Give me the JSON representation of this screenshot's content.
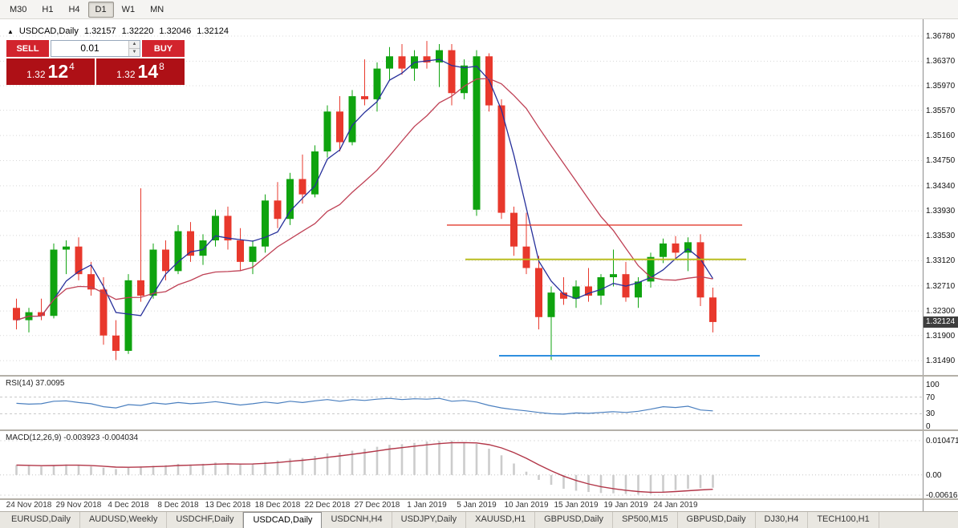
{
  "colors": {
    "up": "#0fa30f",
    "down": "#e8382c",
    "ma_fast": "#27309b",
    "ma_slow": "#bf4155",
    "rsi": "#4a7fbf",
    "macd_bar": "#cccccc",
    "macd_signal": "#b23648"
  },
  "toolbar": {
    "timeframes": [
      {
        "label": "M30",
        "active": false
      },
      {
        "label": "H1",
        "active": false
      },
      {
        "label": "H4",
        "active": false
      },
      {
        "label": "D1",
        "active": true
      },
      {
        "label": "W1",
        "active": false
      },
      {
        "label": "MN",
        "active": false
      }
    ]
  },
  "header": {
    "marker": "▲",
    "symbol": "USDCAD,Daily",
    "open": "1.32157",
    "high": "1.32220",
    "low": "1.32046",
    "close": "1.32124"
  },
  "trade_panel": {
    "sell_label": "SELL",
    "buy_label": "BUY",
    "volume": "0.01",
    "sell_price": {
      "big": "1.32",
      "pips": "12",
      "sup": "4"
    },
    "buy_price": {
      "big": "1.32",
      "pips": "14",
      "sup": "8"
    }
  },
  "price_axis": [
    "1.36780",
    "1.36370",
    "1.35970",
    "1.35570",
    "1.35160",
    "1.34750",
    "1.34340",
    "1.33930",
    "1.33530",
    "1.33120",
    "1.32710",
    "1.32300",
    "1.31900",
    "1.31490"
  ],
  "current_price_badge": "1.32124",
  "rsi_panel": {
    "label": "RSI(14) 37.0095",
    "axis": [
      "100",
      "70",
      "30",
      "0"
    ],
    "levels": [
      100,
      70,
      30,
      0
    ]
  },
  "macd_panel": {
    "label": "MACD(12,26,9) -0.003923 -0.004034",
    "axis_top": "0.010471",
    "axis_zero": "0.00",
    "axis_bottom": "-0.00616"
  },
  "tabs": [
    {
      "label": "EURUSD,Daily",
      "active": false
    },
    {
      "label": "AUDUSD,Weekly",
      "active": false
    },
    {
      "label": "USDCHF,Daily",
      "active": false
    },
    {
      "label": "USDCAD,Daily",
      "active": true
    },
    {
      "label": "USDCNH,H4",
      "active": false
    },
    {
      "label": "USDJPY,Daily",
      "active": false
    },
    {
      "label": "XAUUSD,H1",
      "active": false
    },
    {
      "label": "GBPUSD,Daily",
      "active": false
    },
    {
      "label": "SP500,M15",
      "active": false
    },
    {
      "label": "GBPUSD,Daily",
      "active": false
    },
    {
      "label": "DJ30,H4",
      "active": false
    },
    {
      "label": "TECH100,H1",
      "active": false
    }
  ],
  "chart_data": {
    "type": "candlestick",
    "symbol": "USDCAD",
    "timeframe": "Daily",
    "ohlc_display": {
      "open": 1.32157,
      "high": 1.3222,
      "low": 1.32046,
      "close": 1.32124
    },
    "y_axis_range": [
      1.3149,
      1.3678
    ],
    "x_labels": [
      "24 Nov 2018",
      "29 Nov 2018",
      "4 Dec 2018",
      "8 Dec 2018",
      "13 Dec 2018",
      "18 Dec 2018",
      "22 Dec 2018",
      "27 Dec 2018",
      "1 Jan 2019",
      "5 Jan 2019",
      "10 Jan 2019",
      "15 Jan 2019",
      "19 Jan 2019",
      "24 Jan 2019"
    ],
    "candles": [
      [
        1.3235,
        1.325,
        1.32,
        1.3215
      ],
      [
        1.3215,
        1.3235,
        1.3195,
        1.3228
      ],
      [
        1.3228,
        1.325,
        1.3215,
        1.3222
      ],
      [
        1.3222,
        1.334,
        1.3218,
        1.333
      ],
      [
        1.333,
        1.3345,
        1.329,
        1.3335
      ],
      [
        1.3335,
        1.335,
        1.328,
        1.329
      ],
      [
        1.329,
        1.331,
        1.3255,
        1.3265
      ],
      [
        1.3265,
        1.3285,
        1.3175,
        1.319
      ],
      [
        1.319,
        1.3215,
        1.315,
        1.3165
      ],
      [
        1.3165,
        1.329,
        1.316,
        1.328
      ],
      [
        1.328,
        1.343,
        1.3245,
        1.3255
      ],
      [
        1.3255,
        1.334,
        1.325,
        1.333
      ],
      [
        1.333,
        1.3345,
        1.328,
        1.3295
      ],
      [
        1.3295,
        1.337,
        1.329,
        1.336
      ],
      [
        1.336,
        1.3375,
        1.331,
        1.332
      ],
      [
        1.332,
        1.3355,
        1.3305,
        1.3345
      ],
      [
        1.3345,
        1.3395,
        1.3335,
        1.3385
      ],
      [
        1.3385,
        1.34,
        1.333,
        1.3345
      ],
      [
        1.3345,
        1.3365,
        1.3295,
        1.331
      ],
      [
        1.331,
        1.3345,
        1.329,
        1.3335
      ],
      [
        1.3335,
        1.342,
        1.3325,
        1.341
      ],
      [
        1.341,
        1.344,
        1.3365,
        1.338
      ],
      [
        1.338,
        1.3455,
        1.337,
        1.3445
      ],
      [
        1.3445,
        1.3485,
        1.3405,
        1.342
      ],
      [
        1.342,
        1.35,
        1.3415,
        1.349
      ],
      [
        1.349,
        1.3565,
        1.348,
        1.3555
      ],
      [
        1.3555,
        1.358,
        1.349,
        1.3505
      ],
      [
        1.3505,
        1.359,
        1.35,
        1.358
      ],
      [
        1.358,
        1.364,
        1.3565,
        1.3575
      ],
      [
        1.3575,
        1.3635,
        1.3555,
        1.3625
      ],
      [
        1.3625,
        1.366,
        1.3605,
        1.3645
      ],
      [
        1.3645,
        1.3665,
        1.3615,
        1.3625
      ],
      [
        1.3625,
        1.3655,
        1.3605,
        1.3645
      ],
      [
        1.3645,
        1.367,
        1.3625,
        1.3635
      ],
      [
        1.3635,
        1.3665,
        1.3595,
        1.3655
      ],
      [
        1.3655,
        1.3665,
        1.3565,
        1.3585
      ],
      [
        1.3585,
        1.364,
        1.3575,
        1.363
      ],
      [
        1.3395,
        1.3655,
        1.3385,
        1.3645
      ],
      [
        1.3645,
        1.365,
        1.3555,
        1.3565
      ],
      [
        1.3565,
        1.3575,
        1.338,
        1.339
      ],
      [
        1.339,
        1.34,
        1.332,
        1.3335
      ],
      [
        1.3335,
        1.339,
        1.329,
        1.33
      ],
      [
        1.33,
        1.332,
        1.32,
        1.322
      ],
      [
        1.322,
        1.327,
        1.315,
        1.326
      ],
      [
        1.326,
        1.3285,
        1.324,
        1.325
      ],
      [
        1.325,
        1.328,
        1.3235,
        1.327
      ],
      [
        1.327,
        1.33,
        1.3245,
        1.3255
      ],
      [
        1.3255,
        1.329,
        1.324,
        1.3285
      ],
      [
        1.3285,
        1.333,
        1.327,
        1.329
      ],
      [
        1.329,
        1.331,
        1.3245,
        1.3252
      ],
      [
        1.3252,
        1.3285,
        1.3235,
        1.3278
      ],
      [
        1.3278,
        1.3325,
        1.3268,
        1.3318
      ],
      [
        1.3318,
        1.3348,
        1.3308,
        1.334
      ],
      [
        1.334,
        1.3352,
        1.3315,
        1.3325
      ],
      [
        1.3325,
        1.335,
        1.3295,
        1.3342
      ],
      [
        1.3342,
        1.3355,
        1.3238,
        1.3252
      ],
      [
        1.3252,
        1.3268,
        1.3195,
        1.3212
      ]
    ],
    "hlines": [
      {
        "key": "resistance",
        "name": "resistance-line",
        "color": "#e23b2e",
        "price": 1.337
      },
      {
        "key": "median",
        "name": "median-line",
        "color": "#b9bd1f",
        "price": 1.3314
      },
      {
        "key": "support",
        "name": "support-line",
        "color": "#2f8fdf",
        "price": 1.3157
      }
    ],
    "rsi": {
      "period": 14,
      "current": 37.0095,
      "values": [
        55,
        53,
        54,
        60,
        61,
        57,
        54,
        47,
        44,
        52,
        50,
        56,
        53,
        57,
        54,
        56,
        59,
        55,
        51,
        54,
        58,
        55,
        60,
        57,
        61,
        64,
        60,
        64,
        62,
        65,
        67,
        64,
        66,
        65,
        67,
        60,
        62,
        58,
        50,
        44,
        40,
        37,
        33,
        30,
        29,
        32,
        31,
        33,
        35,
        33,
        36,
        41,
        47,
        45,
        48,
        39,
        37
      ]
    },
    "macd": {
      "fast": 12,
      "slow": 26,
      "signal": 9,
      "macd_current": -0.003923,
      "signal_current": -0.004034,
      "histogram": [
        0.003,
        0.0028,
        0.0026,
        0.003,
        0.0032,
        0.003,
        0.0026,
        0.0022,
        0.0018,
        0.0022,
        0.0026,
        0.0028,
        0.003,
        0.0034,
        0.0032,
        0.0034,
        0.0038,
        0.0036,
        0.0032,
        0.0034,
        0.004,
        0.0044,
        0.005,
        0.0052,
        0.0058,
        0.0066,
        0.0068,
        0.0074,
        0.008,
        0.0086,
        0.0092,
        0.0094,
        0.0098,
        0.0102,
        0.0104,
        0.0105,
        0.01,
        0.0095,
        0.008,
        0.006,
        0.0035,
        0.001,
        -0.0015,
        -0.003,
        -0.0042,
        -0.0048,
        -0.0052,
        -0.0055,
        -0.0056,
        -0.0058,
        -0.006,
        -0.0058,
        -0.0052,
        -0.0046,
        -0.0042,
        -0.004,
        -0.0039
      ],
      "scale_top": 0.010471,
      "scale_bottom": -0.00616
    }
  }
}
